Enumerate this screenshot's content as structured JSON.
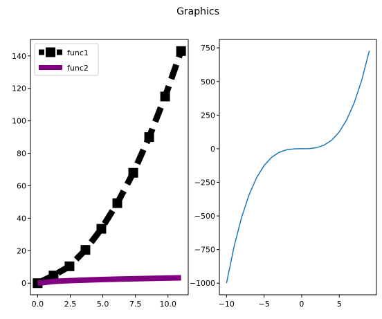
{
  "title": "Graphics",
  "chart_data": [
    {
      "type": "line",
      "xlim": [
        -0.55,
        11.55
      ],
      "ylim": [
        -7.15,
        150.15
      ],
      "xticks": [
        0.0,
        2.5,
        5.0,
        7.5,
        10.0
      ],
      "xtick_labels": [
        "0.0",
        "2.5",
        "5.0",
        "7.5",
        "10.0"
      ],
      "yticks": [
        0,
        20,
        40,
        60,
        80,
        100,
        120,
        140
      ],
      "ytick_labels": [
        "0",
        "20",
        "40",
        "60",
        "80",
        "100",
        "120",
        "140"
      ],
      "legend_position": "top-left",
      "series": [
        {
          "name": "func1",
          "color": "#000000",
          "style": "dashed",
          "marker": "square",
          "x": [
            0.0,
            1.2222,
            2.4444,
            3.6667,
            4.8889,
            6.1111,
            7.3333,
            8.5556,
            9.7778,
            11.0
          ],
          "y": [
            0.0,
            4.7,
            10.4,
            20.5,
            33.5,
            49.3,
            68.0,
            90.0,
            115.0,
            143.0
          ]
        },
        {
          "name": "func2",
          "color": "#800080",
          "style": "solid",
          "marker": "none",
          "x": [
            0.0,
            1.2222,
            2.4444,
            3.6667,
            4.8889,
            6.1111,
            7.3333,
            8.5556,
            9.7778,
            11.0
          ],
          "y": [
            0.0,
            1.1055,
            1.5635,
            1.9149,
            2.2111,
            2.4721,
            2.708,
            2.925,
            3.1269,
            3.3166
          ]
        }
      ]
    },
    {
      "type": "line",
      "xlim": [
        -10.95,
        9.95
      ],
      "ylim": [
        -1086.46,
        812.66
      ],
      "xticks": [
        -10,
        -5,
        0,
        5
      ],
      "xtick_labels": [
        "−10",
        "−5",
        "0",
        "5"
      ],
      "yticks": [
        -1000,
        -750,
        -500,
        -250,
        0,
        250,
        500,
        750
      ],
      "ytick_labels": [
        "−1000",
        "−750",
        "−500",
        "−250",
        "0",
        "250",
        "500",
        "750"
      ],
      "series": [
        {
          "color": "#1f77b4",
          "x": [
            -10,
            -9,
            -8,
            -7,
            -6,
            -5,
            -4,
            -3,
            -2,
            -1,
            0,
            1,
            2,
            3,
            4,
            5,
            6,
            7,
            8,
            9
          ],
          "y": [
            -1000,
            -729,
            -512,
            -343,
            -216,
            -125,
            -64,
            -27,
            -8,
            -1,
            0,
            1,
            8,
            27,
            64,
            125,
            216,
            343,
            512,
            729
          ]
        }
      ]
    }
  ]
}
